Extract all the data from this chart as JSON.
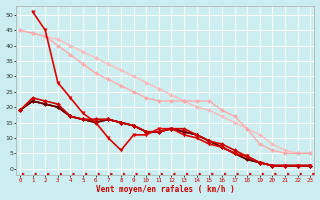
{
  "xlabel": "Vent moyen/en rafales ( km/h )",
  "background_color": "#cceef0",
  "grid_color": "#ffffff",
  "x_ticks": [
    0,
    1,
    2,
    3,
    4,
    5,
    6,
    7,
    8,
    9,
    10,
    11,
    12,
    13,
    14,
    15,
    16,
    17,
    18,
    19,
    20,
    21,
    22,
    23
  ],
  "ylim": [
    -2,
    53
  ],
  "xlim": [
    -0.3,
    23.3
  ],
  "series": [
    {
      "x": [
        0,
        1,
        2,
        3,
        4,
        5,
        6,
        7,
        8,
        9,
        10,
        11,
        12,
        13,
        14,
        15,
        16,
        17,
        18,
        19,
        20,
        21,
        22,
        23
      ],
      "y": [
        45,
        44,
        43,
        42,
        40,
        38,
        36,
        34,
        32,
        30,
        28,
        26,
        24,
        22,
        20,
        19,
        17,
        15,
        13,
        11,
        8,
        6,
        5,
        5
      ],
      "color": "#ffbbbb",
      "linewidth": 1.0,
      "marker": "D",
      "markersize": 2.0,
      "zorder": 2
    },
    {
      "x": [
        0,
        1,
        2,
        3,
        4,
        5,
        6,
        7,
        8,
        9,
        10,
        11,
        12,
        13,
        14,
        15,
        16,
        17,
        18,
        19,
        20,
        21,
        22,
        23
      ],
      "y": [
        45,
        44,
        43,
        40,
        37,
        34,
        31,
        29,
        27,
        25,
        23,
        22,
        22,
        22,
        22,
        22,
        19,
        17,
        13,
        8,
        6,
        5,
        5,
        5
      ],
      "color": "#ffaaaa",
      "linewidth": 1.0,
      "marker": "D",
      "markersize": 2.0,
      "zorder": 3
    },
    {
      "x": [
        1,
        2,
        3,
        4,
        5,
        6,
        7,
        8,
        9,
        10,
        11,
        12,
        13,
        14,
        15,
        16,
        17,
        18,
        19,
        20,
        21,
        22,
        23
      ],
      "y": [
        51,
        45,
        28,
        23,
        18,
        15,
        10,
        6,
        11,
        11,
        13,
        13,
        11,
        10,
        8,
        7,
        5,
        4,
        2,
        1,
        1,
        1,
        1
      ],
      "color": "#dd0000",
      "linewidth": 1.2,
      "marker": "v",
      "markersize": 2.5,
      "zorder": 5
    },
    {
      "x": [
        0,
        1,
        2,
        3,
        4,
        5,
        6,
        7,
        8,
        9,
        10,
        11,
        12,
        13,
        14,
        15,
        16,
        17,
        18,
        19,
        20,
        21,
        22,
        23
      ],
      "y": [
        19,
        23,
        22,
        21,
        17,
        16,
        16,
        16,
        15,
        14,
        12,
        12,
        13,
        13,
        11,
        9,
        8,
        6,
        4,
        2,
        1,
        1,
        1,
        1
      ],
      "color": "#cc0000",
      "linewidth": 1.2,
      "marker": "D",
      "markersize": 2.0,
      "zorder": 6
    },
    {
      "x": [
        0,
        1,
        2,
        3,
        4,
        5,
        6,
        7,
        8,
        9,
        10,
        11,
        12,
        13,
        14,
        15,
        16,
        17,
        18,
        19,
        20,
        21,
        22,
        23
      ],
      "y": [
        19,
        22,
        21,
        20,
        17,
        16,
        16,
        16,
        15,
        14,
        12,
        12,
        13,
        12,
        11,
        9,
        7,
        5,
        3,
        2,
        1,
        1,
        1,
        1
      ],
      "color": "#aa0000",
      "linewidth": 1.2,
      "marker": "D",
      "markersize": 2.0,
      "zorder": 4
    },
    {
      "x": [
        0,
        1,
        2,
        3,
        4,
        5,
        6,
        7,
        8,
        9,
        10,
        11,
        12,
        13,
        14,
        15,
        16,
        17,
        18,
        19,
        20,
        21,
        22,
        23
      ],
      "y": [
        19,
        22,
        21,
        20,
        17,
        16,
        15,
        16,
        15,
        14,
        12,
        12,
        13,
        12,
        11,
        9,
        7,
        5,
        3,
        2,
        1,
        1,
        1,
        1
      ],
      "color": "#880000",
      "linewidth": 1.2,
      "marker": "s",
      "markersize": 2.0,
      "zorder": 4
    },
    {
      "x": [
        0,
        1,
        2,
        3,
        4,
        5,
        6,
        7,
        8,
        9,
        10,
        11,
        12,
        13,
        14,
        15,
        16,
        17,
        18,
        19,
        20,
        21,
        22,
        23
      ],
      "y": [
        19,
        22,
        21,
        20,
        17,
        16,
        15,
        16,
        15,
        14,
        12,
        12,
        13,
        12,
        11,
        9,
        7,
        5,
        3,
        2,
        1,
        1,
        1,
        1
      ],
      "color": "#660000",
      "linewidth": 1.0,
      "marker": "D",
      "markersize": 1.8,
      "zorder": 4
    }
  ],
  "yticks": [
    0,
    5,
    10,
    15,
    20,
    25,
    30,
    35,
    40,
    45,
    50
  ],
  "arrow_color": "#cc0000"
}
